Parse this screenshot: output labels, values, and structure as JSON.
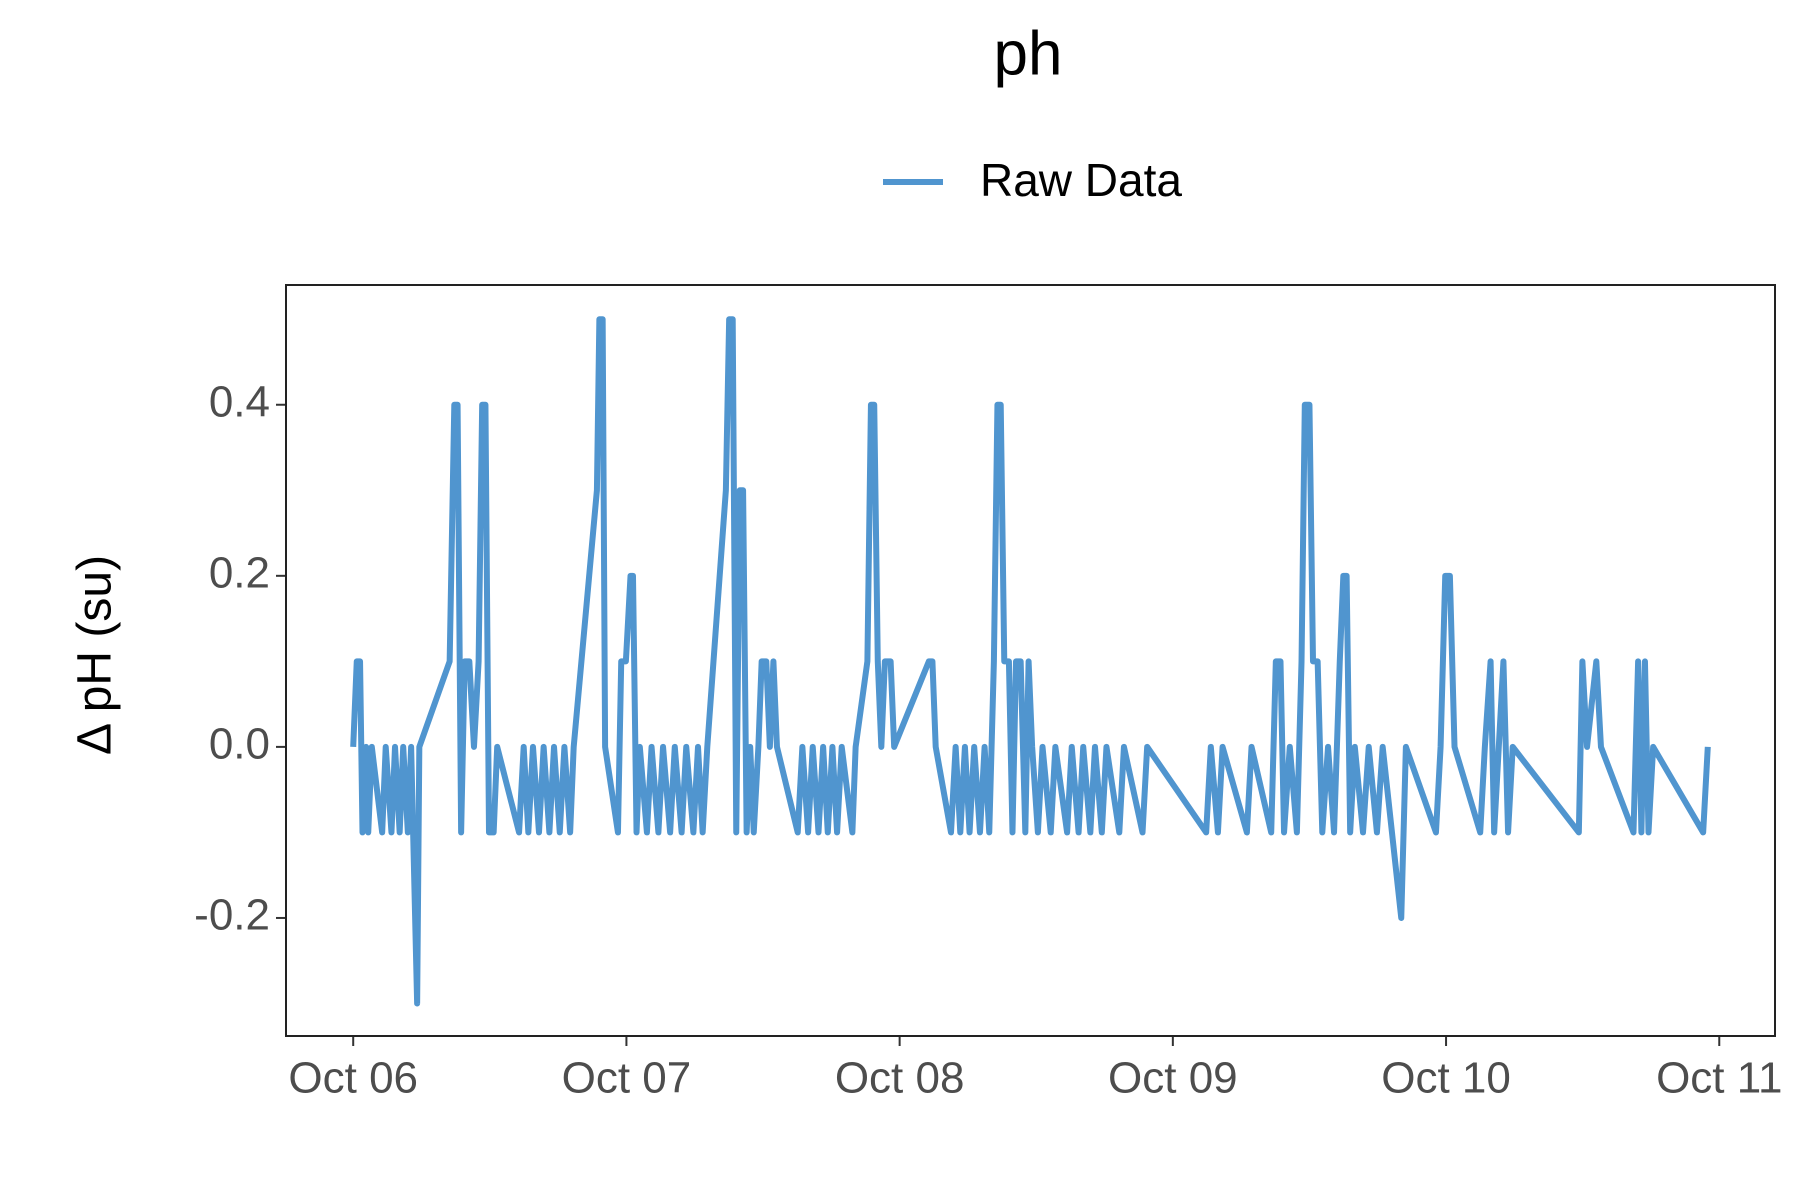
{
  "chart_data": {
    "type": "line",
    "title": "ph",
    "y_label": "Δ pH (su)",
    "x": [
      0,
      0.013,
      0.025,
      0.034,
      0.047,
      0.055,
      0.068,
      0.106,
      0.119,
      0.14,
      0.153,
      0.17,
      0.183,
      0.2,
      0.212,
      0.234,
      0.242,
      0.353,
      0.37,
      0.382,
      0.395,
      0.408,
      0.425,
      0.442,
      0.459,
      0.472,
      0.484,
      0.497,
      0.514,
      0.527,
      0.607,
      0.624,
      0.641,
      0.658,
      0.68,
      0.697,
      0.718,
      0.735,
      0.756,
      0.773,
      0.794,
      0.807,
      0.892,
      0.901,
      0.913,
      0.922,
      0.969,
      0.981,
      0.998,
      1.015,
      1.024,
      1.037,
      1.049,
      1.075,
      1.092,
      1.117,
      1.134,
      1.16,
      1.177,
      1.202,
      1.219,
      1.245,
      1.262,
      1.279,
      1.296,
      1.364,
      1.376,
      1.389,
      1.402,
      1.415,
      1.427,
      1.44,
      1.453,
      1.466,
      1.483,
      1.495,
      1.512,
      1.525,
      1.538,
      1.551,
      1.627,
      1.644,
      1.665,
      1.682,
      1.703,
      1.72,
      1.737,
      1.754,
      1.771,
      1.788,
      1.827,
      1.839,
      1.882,
      1.895,
      1.907,
      1.92,
      1.933,
      1.946,
      1.967,
      1.98,
      2.107,
      2.12,
      2.132,
      2.188,
      2.205,
      2.222,
      2.239,
      2.256,
      2.273,
      2.294,
      2.311,
      2.328,
      2.345,
      2.358,
      2.37,
      2.383,
      2.4,
      2.413,
      2.426,
      2.443,
      2.46,
      2.472,
      2.485,
      2.506,
      2.523,
      2.553,
      2.57,
      2.613,
      2.63,
      2.655,
      2.672,
      2.698,
      2.715,
      2.74,
      2.757,
      2.804,
      2.821,
      2.889,
      2.906,
      3.122,
      3.139,
      3.165,
      3.182,
      3.271,
      3.288,
      3.36,
      3.377,
      3.394,
      3.407,
      3.428,
      3.454,
      3.471,
      3.483,
      3.5,
      3.513,
      3.53,
      3.547,
      3.568,
      3.59,
      3.611,
      3.624,
      3.636,
      3.649,
      3.666,
      3.696,
      3.717,
      3.747,
      3.768,
      3.836,
      3.853,
      3.963,
      3.98,
      3.997,
      4.014,
      4.031,
      4.125,
      4.142,
      4.163,
      4.176,
      4.193,
      4.21,
      4.227,
      4.244,
      4.486,
      4.499,
      4.516,
      4.55,
      4.567,
      4.686,
      4.703,
      4.715,
      4.728,
      4.741,
      4.758,
      4.941,
      4.958
    ],
    "series": [
      {
        "name": "Raw Data",
        "color": "#5095cf",
        "values": [
          0,
          0.1,
          0.1,
          -0.1,
          0,
          -0.1,
          0,
          -0.1,
          0,
          -0.1,
          0,
          -0.1,
          0,
          -0.1,
          0,
          -0.3,
          0,
          0.1,
          0.4,
          0.4,
          -0.1,
          0.1,
          0.1,
          0,
          0.1,
          0.4,
          0.4,
          -0.1,
          -0.1,
          0,
          -0.1,
          0,
          -0.1,
          0,
          -0.1,
          0,
          -0.1,
          0,
          -0.1,
          0,
          -0.1,
          0,
          0.3,
          0.5,
          0.5,
          0,
          -0.1,
          0.1,
          0.1,
          0.2,
          0.2,
          -0.1,
          0,
          -0.1,
          0,
          -0.1,
          0,
          -0.1,
          0,
          -0.1,
          0,
          -0.1,
          0,
          -0.1,
          0,
          0.3,
          0.5,
          0.5,
          -0.1,
          0.3,
          0.3,
          -0.1,
          0,
          -0.1,
          0,
          0.1,
          0.1,
          0,
          0.1,
          0,
          -0.1,
          0,
          -0.1,
          0,
          -0.1,
          0,
          -0.1,
          0,
          -0.1,
          0,
          -0.1,
          0,
          0.1,
          0.4,
          0.4,
          0.1,
          0,
          0.1,
          0.1,
          0,
          0.1,
          0.1,
          0,
          -0.1,
          0,
          -0.1,
          0,
          -0.1,
          0,
          -0.1,
          0,
          -0.1,
          0.1,
          0.4,
          0.4,
          0.1,
          0.1,
          -0.1,
          0.1,
          0.1,
          -0.1,
          0.1,
          0,
          -0.1,
          0,
          -0.1,
          0,
          -0.1,
          0,
          -0.1,
          0,
          -0.1,
          0,
          -0.1,
          0,
          -0.1,
          0,
          -0.1,
          0,
          -0.1,
          0,
          -0.1,
          0,
          -0.1,
          0,
          -0.1,
          0.1,
          0.1,
          -0.1,
          0,
          -0.1,
          0.1,
          0.4,
          0.4,
          0.1,
          0.1,
          -0.1,
          0,
          -0.1,
          0.1,
          0.2,
          0.2,
          -0.1,
          0,
          -0.1,
          0,
          -0.1,
          0,
          -0.2,
          0,
          -0.1,
          0,
          0.2,
          0.2,
          0,
          -0.1,
          0,
          0.1,
          -0.1,
          0,
          0.1,
          -0.1,
          0,
          -0.1,
          0.1,
          0,
          0.1,
          0,
          -0.1,
          0.1,
          -0.1,
          0.1,
          -0.1,
          0,
          -0.1,
          0
        ]
      }
    ],
    "xlim": [
      -0.246,
      5.204
    ],
    "xticks": [
      {
        "value": 0,
        "label": "Oct 06"
      },
      {
        "value": 1,
        "label": "Oct 07"
      },
      {
        "value": 2,
        "label": "Oct 08"
      },
      {
        "value": 3,
        "label": "Oct 09"
      },
      {
        "value": 4,
        "label": "Oct 10"
      },
      {
        "value": 5,
        "label": "Oct 11"
      }
    ],
    "ylim": [
      -0.338,
      0.54
    ],
    "yticks": [
      -0.2,
      {
        "value": 0,
        "label": "0.0"
      },
      0.2,
      0.4
    ],
    "legend": "top"
  }
}
